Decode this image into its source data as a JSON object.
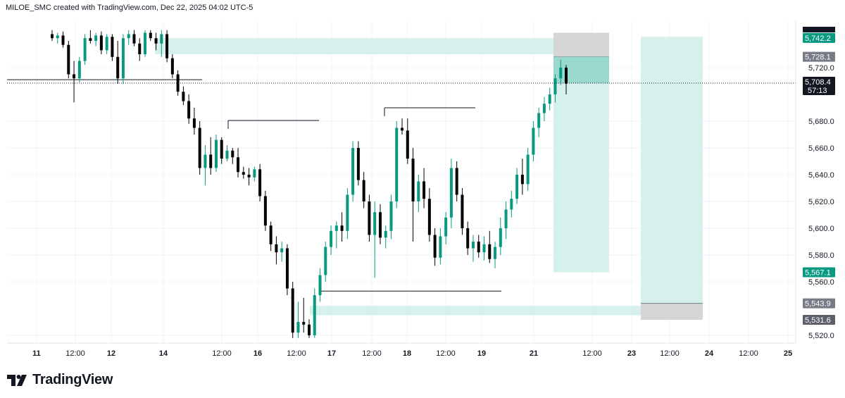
{
  "header": {
    "caption": "MILOE_SMC created with TradingView.com, Dec 22, 2025 04:02 UTC-5"
  },
  "brand": {
    "name": "TradingView"
  },
  "colors": {
    "up": "#089981",
    "down": "#000000",
    "zone": "#d6f0ec",
    "zone_strong": "#9ad9cd",
    "stop_zone": "#d5d5d5",
    "grid": "#f0f3fa",
    "text": "#131722"
  },
  "chart_data": {
    "type": "candlestick",
    "ylim": [
      5516,
      5748
    ],
    "y_ticks": [
      5520.0,
      5560.0,
      5580.0,
      5600.0,
      5620.0,
      5640.0,
      5660.0,
      5680.0,
      5720.0
    ],
    "y_tick_labels": [
      "5,520.0",
      "5,560.0",
      "5,580.0",
      "5,600.0",
      "5,620.0",
      "5,640.0",
      "5,660.0",
      "5,680.0",
      "5,720.0"
    ],
    "x_ticks": [
      "11",
      "12:00",
      "12",
      "14",
      "12:00",
      "16",
      "12:00",
      "17",
      "12:00",
      "18",
      "12:00",
      "19",
      "21",
      "12:00",
      "23",
      "12:00",
      "24",
      "12:00",
      "25"
    ],
    "x_tick_bold": [
      true,
      false,
      true,
      true,
      false,
      true,
      false,
      true,
      false,
      true,
      false,
      true,
      true,
      false,
      true,
      false,
      true,
      false,
      true
    ],
    "price_labels": [
      {
        "text": "5,742.2",
        "value": 5742.2,
        "style": "green"
      },
      {
        "text": "5,728.1",
        "value": 5728.1,
        "style": "gray"
      },
      {
        "text": "5,708.4",
        "value": 5708.4,
        "style": "black"
      },
      {
        "text": "5,567.1",
        "value": 5567.1,
        "style": "green"
      },
      {
        "text": "5,543.9",
        "value": 5543.9,
        "style": "gray"
      },
      {
        "text": "5,531.6",
        "value": 5531.6,
        "style": "darkgray"
      }
    ],
    "countdown": "57:13",
    "current_price": 5708.4,
    "candles": [
      [
        5745,
        5748,
        5740,
        5742
      ],
      [
        5742,
        5746,
        5738,
        5744
      ],
      [
        5744,
        5747,
        5735,
        5737
      ],
      [
        5737,
        5740,
        5712,
        5715
      ],
      [
        5715,
        5725,
        5694,
        5712
      ],
      [
        5712,
        5728,
        5709,
        5725
      ],
      [
        5725,
        5745,
        5722,
        5742
      ],
      [
        5742,
        5748,
        5738,
        5740
      ],
      [
        5740,
        5746,
        5736,
        5744
      ],
      [
        5744,
        5747,
        5730,
        5733
      ],
      [
        5733,
        5745,
        5730,
        5743
      ],
      [
        5743,
        5745,
        5725,
        5728
      ],
      [
        5728,
        5740,
        5708,
        5712
      ],
      [
        5712,
        5745,
        5708,
        5742
      ],
      [
        5742,
        5748,
        5737,
        5745
      ],
      [
        5745,
        5748,
        5736,
        5738
      ],
      [
        5738,
        5742,
        5725,
        5730
      ],
      [
        5730,
        5748,
        5728,
        5746
      ],
      [
        5746,
        5748,
        5740,
        5742
      ],
      [
        5742,
        5746,
        5733,
        5738
      ],
      [
        5738,
        5748,
        5728,
        5745
      ],
      [
        5745,
        5748,
        5724,
        5727
      ],
      [
        5727,
        5730,
        5712,
        5715
      ],
      [
        5715,
        5718,
        5699,
        5702
      ],
      [
        5702,
        5706,
        5692,
        5695
      ],
      [
        5695,
        5700,
        5678,
        5682
      ],
      [
        5682,
        5690,
        5670,
        5675
      ],
      [
        5675,
        5680,
        5640,
        5645
      ],
      [
        5645,
        5662,
        5632,
        5655
      ],
      [
        5655,
        5668,
        5640,
        5645
      ],
      [
        5645,
        5670,
        5642,
        5666
      ],
      [
        5666,
        5668,
        5648,
        5652
      ],
      [
        5652,
        5662,
        5650,
        5658
      ],
      [
        5658,
        5660,
        5648,
        5653
      ],
      [
        5653,
        5660,
        5638,
        5642
      ],
      [
        5642,
        5646,
        5637,
        5640
      ],
      [
        5640,
        5645,
        5632,
        5638
      ],
      [
        5638,
        5646,
        5635,
        5644
      ],
      [
        5644,
        5648,
        5620,
        5624
      ],
      [
        5624,
        5628,
        5598,
        5602
      ],
      [
        5602,
        5605,
        5583,
        5588
      ],
      [
        5588,
        5594,
        5573,
        5582
      ],
      [
        5582,
        5590,
        5575,
        5585
      ],
      [
        5585,
        5588,
        5550,
        5555
      ],
      [
        5555,
        5560,
        5518,
        5522
      ],
      [
        5522,
        5545,
        5518,
        5530
      ],
      [
        5530,
        5548,
        5522,
        5528
      ],
      [
        5528,
        5532,
        5518,
        5520
      ],
      [
        5520,
        5555,
        5518,
        5550
      ],
      [
        5550,
        5570,
        5545,
        5565
      ],
      [
        5565,
        5590,
        5560,
        5586
      ],
      [
        5586,
        5602,
        5580,
        5598
      ],
      [
        5598,
        5605,
        5585,
        5602
      ],
      [
        5602,
        5612,
        5590,
        5598
      ],
      [
        5598,
        5630,
        5592,
        5625
      ],
      [
        5625,
        5665,
        5620,
        5660
      ],
      [
        5660,
        5665,
        5632,
        5636
      ],
      [
        5636,
        5642,
        5615,
        5620
      ],
      [
        5620,
        5625,
        5590,
        5595
      ],
      [
        5595,
        5620,
        5563,
        5612
      ],
      [
        5612,
        5618,
        5588,
        5593
      ],
      [
        5593,
        5602,
        5585,
        5598
      ],
      [
        5598,
        5625,
        5592,
        5620
      ],
      [
        5620,
        5680,
        5615,
        5675
      ],
      [
        5675,
        5682,
        5670,
        5673
      ],
      [
        5673,
        5682,
        5648,
        5652
      ],
      [
        5652,
        5660,
        5590,
        5620
      ],
      [
        5620,
        5640,
        5612,
        5635
      ],
      [
        5635,
        5645,
        5615,
        5622
      ],
      [
        5622,
        5630,
        5590,
        5595
      ],
      [
        5595,
        5600,
        5572,
        5578
      ],
      [
        5578,
        5600,
        5573,
        5594
      ],
      [
        5594,
        5612,
        5588,
        5608
      ],
      [
        5608,
        5652,
        5600,
        5645
      ],
      [
        5645,
        5650,
        5620,
        5625
      ],
      [
        5625,
        5630,
        5595,
        5600
      ],
      [
        5600,
        5605,
        5580,
        5585
      ],
      [
        5585,
        5595,
        5575,
        5590
      ],
      [
        5590,
        5595,
        5578,
        5582
      ],
      [
        5582,
        5594,
        5576,
        5588
      ],
      [
        5588,
        5598,
        5574,
        5577
      ],
      [
        5577,
        5590,
        5570,
        5586
      ],
      [
        5586,
        5608,
        5580,
        5600
      ],
      [
        5600,
        5620,
        5592,
        5614
      ],
      [
        5614,
        5628,
        5608,
        5622
      ],
      [
        5622,
        5645,
        5618,
        5640
      ],
      [
        5640,
        5652,
        5625,
        5633
      ],
      [
        5633,
        5660,
        5628,
        5655
      ],
      [
        5655,
        5680,
        5650,
        5675
      ],
      [
        5675,
        5690,
        5668,
        5686
      ],
      [
        5686,
        5698,
        5680,
        5693
      ],
      [
        5693,
        5705,
        5688,
        5700
      ],
      [
        5700,
        5715,
        5694,
        5712
      ],
      [
        5712,
        5726,
        5707,
        5720
      ],
      [
        5720,
        5722,
        5700,
        5708
      ]
    ],
    "levels": [
      {
        "from": 10,
        "to": 287,
        "value": 5711.0
      },
      {
        "from": 324,
        "to": 453,
        "value": 5680.5
      },
      {
        "from": 546,
        "to": 675,
        "value": 5690.0
      },
      {
        "from": 453,
        "to": 712,
        "value": 5553.0
      }
    ],
    "zones": [
      {
        "x1": 220,
        "x2": 787,
        "y1": 5730.0,
        "y2": 5742.0,
        "style": "zone"
      },
      {
        "x1": 786,
        "x2": 865,
        "y1": 5728.1,
        "y2": 5746.0,
        "style": "stop_zone"
      },
      {
        "x1": 786,
        "x2": 865,
        "y1": 5708.4,
        "y2": 5728.1,
        "style": "zone_strong"
      },
      {
        "x1": 786,
        "x2": 865,
        "y1": 5567.1,
        "y2": 5708.4,
        "style": "zone"
      },
      {
        "x1": 910,
        "x2": 998,
        "y1": 5543.9,
        "y2": 5743.0,
        "style": "zone"
      },
      {
        "x1": 910,
        "x2": 998,
        "y1": 5531.6,
        "y2": 5543.9,
        "style": "stop_zone"
      },
      {
        "x1": 440,
        "x2": 910,
        "y1": 5535.0,
        "y2": 5542.0,
        "style": "zone"
      }
    ]
  }
}
